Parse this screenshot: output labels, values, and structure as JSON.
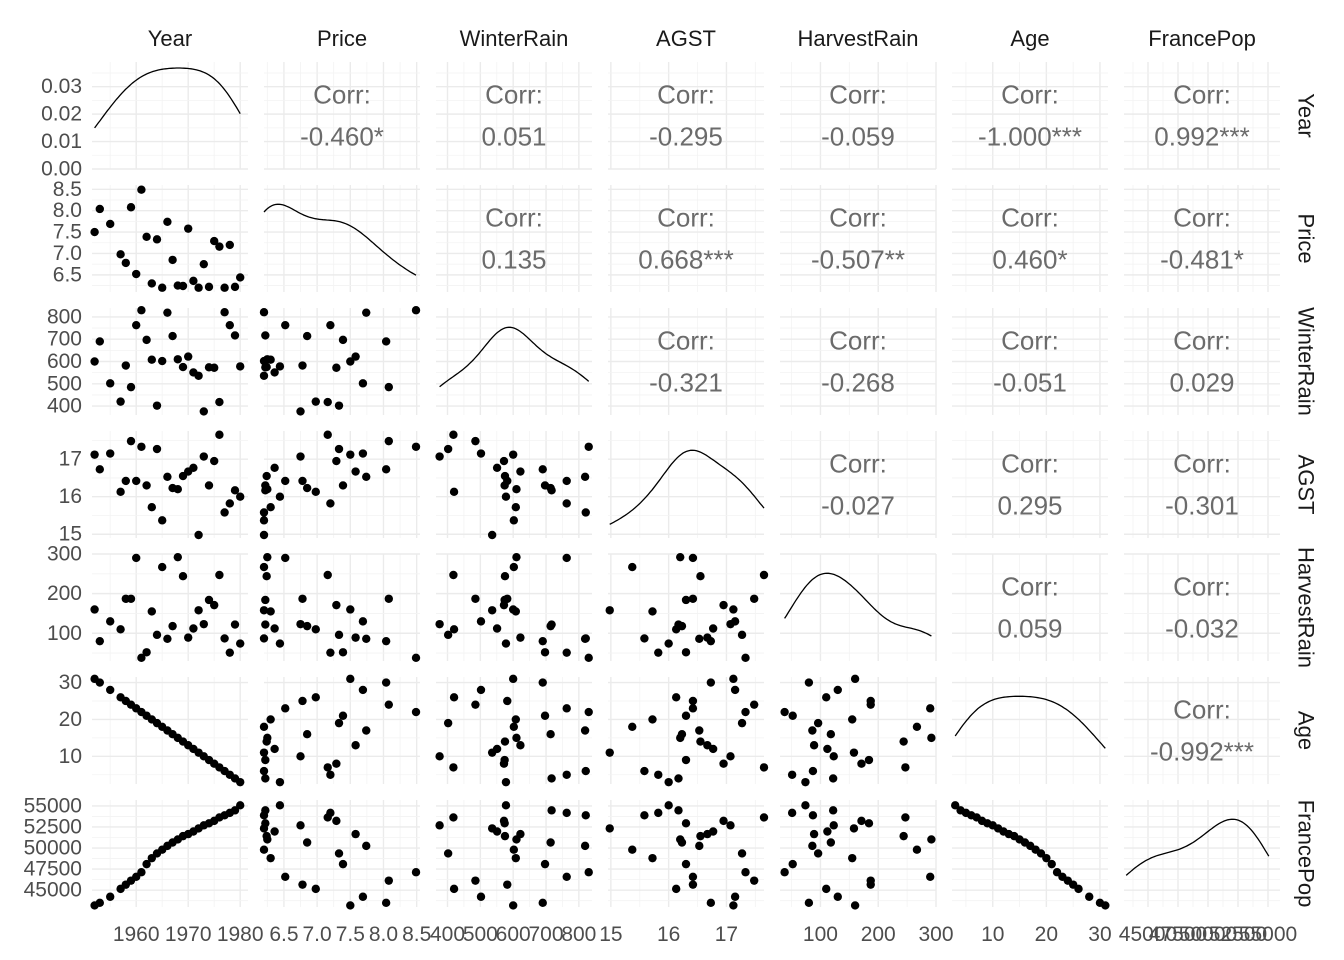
{
  "chart_data": {
    "type": "scatter",
    "subtype": "pairs-plot-matrix",
    "variables": [
      "Year",
      "Price",
      "WinterRain",
      "AGST",
      "HarvestRain",
      "Age",
      "FrancePop"
    ],
    "diagonal": "density",
    "upper": "correlation",
    "lower": "scatter",
    "grid": true,
    "point_color": "#000000",
    "corr_label": "Corr:",
    "correlations": [
      {
        "row": "Year",
        "col": "Price",
        "value": "-0.460*"
      },
      {
        "row": "Year",
        "col": "WinterRain",
        "value": "0.051"
      },
      {
        "row": "Year",
        "col": "AGST",
        "value": "-0.295"
      },
      {
        "row": "Year",
        "col": "HarvestRain",
        "value": "-0.059"
      },
      {
        "row": "Year",
        "col": "Age",
        "value": "-1.000***"
      },
      {
        "row": "Year",
        "col": "FrancePop",
        "value": "0.992***"
      },
      {
        "row": "Price",
        "col": "WinterRain",
        "value": "0.135"
      },
      {
        "row": "Price",
        "col": "AGST",
        "value": "0.668***"
      },
      {
        "row": "Price",
        "col": "HarvestRain",
        "value": "-0.507**"
      },
      {
        "row": "Price",
        "col": "Age",
        "value": "0.460*"
      },
      {
        "row": "Price",
        "col": "FrancePop",
        "value": "-0.481*"
      },
      {
        "row": "WinterRain",
        "col": "AGST",
        "value": "-0.321"
      },
      {
        "row": "WinterRain",
        "col": "HarvestRain",
        "value": "-0.268"
      },
      {
        "row": "WinterRain",
        "col": "Age",
        "value": "-0.051"
      },
      {
        "row": "WinterRain",
        "col": "FrancePop",
        "value": "0.029"
      },
      {
        "row": "AGST",
        "col": "HarvestRain",
        "value": "-0.027"
      },
      {
        "row": "AGST",
        "col": "Age",
        "value": "0.295"
      },
      {
        "row": "AGST",
        "col": "FrancePop",
        "value": "-0.301"
      },
      {
        "row": "HarvestRain",
        "col": "Age",
        "value": "0.059"
      },
      {
        "row": "HarvestRain",
        "col": "FrancePop",
        "value": "-0.032"
      },
      {
        "row": "Age",
        "col": "FrancePop",
        "value": "-0.992***"
      }
    ],
    "x_axes": [
      {
        "var": "Year",
        "range": [
          1951.5,
          1981.5
        ],
        "ticks": [
          1960,
          1970,
          1980
        ],
        "tick_labels": [
          "1960",
          "1970",
          "1980"
        ]
      },
      {
        "var": "Price",
        "range": [
          6.2,
          8.55
        ],
        "ticks": [
          6.5,
          7.0,
          7.5,
          8.0,
          8.5
        ],
        "tick_labels": [
          "6.5",
          "7.0",
          "7.5",
          "8.0",
          "8.5"
        ]
      },
      {
        "var": "WinterRain",
        "range": [
          365,
          840
        ],
        "ticks": [
          400,
          500,
          600,
          700,
          800
        ],
        "tick_labels": [
          "400",
          "500",
          "600",
          "700",
          "800"
        ]
      },
      {
        "var": "AGST",
        "range": [
          14.95,
          17.65
        ],
        "ticks": [
          15,
          16,
          17
        ],
        "tick_labels": [
          "15",
          "16",
          "17"
        ]
      },
      {
        "var": "HarvestRain",
        "range": [
          30,
          300
        ],
        "ticks": [
          100,
          200,
          300
        ],
        "tick_labels": [
          "100",
          "200",
          "300"
        ]
      },
      {
        "var": "Age",
        "range": [
          2.4,
          31.5
        ],
        "ticks": [
          10,
          20,
          30
        ],
        "tick_labels": [
          "10",
          "20",
          "30"
        ]
      },
      {
        "var": "FrancePop",
        "range": [
          43000,
          56000
        ],
        "ticks": [
          45000,
          47500,
          50000,
          52500,
          55000
        ],
        "tick_labels": [
          "45000",
          "47500",
          "50000",
          "52500",
          "55000"
        ]
      }
    ],
    "y_axes": [
      {
        "var": "Year",
        "range": [
          0,
          0.039
        ],
        "ticks": [
          0,
          0.01,
          0.02,
          0.03
        ],
        "tick_labels": [
          "0.00",
          "0.01",
          "0.02",
          "0.03"
        ]
      },
      {
        "var": "Price",
        "range": [
          6.1,
          8.6
        ],
        "ticks": [
          6.5,
          7.0,
          7.5,
          8.0,
          8.5
        ],
        "tick_labels": [
          "6.5",
          "7.0",
          "7.5",
          "8.0",
          "8.5"
        ]
      },
      {
        "var": "WinterRain",
        "range": [
          360,
          840
        ],
        "ticks": [
          400,
          500,
          600,
          700,
          800
        ],
        "tick_labels": [
          "400",
          "500",
          "600",
          "700",
          "800"
        ]
      },
      {
        "var": "AGST",
        "range": [
          14.9,
          17.75
        ],
        "ticks": [
          15,
          16,
          17
        ],
        "tick_labels": [
          "15",
          "16",
          "17"
        ]
      },
      {
        "var": "HarvestRain",
        "range": [
          30,
          300
        ],
        "ticks": [
          100,
          200,
          300
        ],
        "tick_labels": [
          "100",
          "200",
          "300"
        ]
      },
      {
        "var": "Age",
        "range": [
          2.5,
          31.5
        ],
        "ticks": [
          10,
          20,
          30
        ],
        "tick_labels": [
          "10",
          "20",
          "30"
        ]
      },
      {
        "var": "FrancePop",
        "range": [
          43000,
          55700
        ],
        "ticks": [
          45000,
          47500,
          50000,
          52500,
          55000
        ],
        "tick_labels": [
          "45000",
          "47500",
          "50000",
          "52500",
          "55000"
        ]
      }
    ],
    "observations": {
      "Year": [
        1952,
        1953,
        1955,
        1957,
        1958,
        1959,
        1960,
        1961,
        1962,
        1963,
        1964,
        1965,
        1966,
        1967,
        1968,
        1969,
        1970,
        1971,
        1972,
        1973,
        1974,
        1975,
        1976,
        1977,
        1978,
        1979,
        1980
      ],
      "Price": [
        7.5,
        8.04,
        7.69,
        6.98,
        6.78,
        8.08,
        6.52,
        8.49,
        7.39,
        6.3,
        7.33,
        6.2,
        7.74,
        6.85,
        6.25,
        6.24,
        7.58,
        6.36,
        6.2,
        6.75,
        6.22,
        7.29,
        7.16,
        6.2,
        7.2,
        6.22,
        6.44
      ],
      "WinterRain": [
        600,
        690,
        502,
        420,
        582,
        485,
        763,
        830,
        697,
        608,
        402,
        602,
        819,
        714,
        610,
        575,
        622,
        551,
        536,
        376,
        574,
        572,
        418,
        821,
        763,
        717,
        578
      ],
      "AGST": [
        17.12,
        16.73,
        17.15,
        16.13,
        16.42,
        17.48,
        16.42,
        17.33,
        16.3,
        15.72,
        17.27,
        15.37,
        16.53,
        16.23,
        16.2,
        16.55,
        16.67,
        16.77,
        14.98,
        17.07,
        16.3,
        16.95,
        17.65,
        15.58,
        15.82,
        16.17,
        16.0
      ],
      "HarvestRain": [
        160,
        80,
        130,
        110,
        187,
        187,
        290,
        38,
        52,
        155,
        96,
        267,
        86,
        118,
        292,
        244,
        89,
        112,
        158,
        123,
        184,
        171,
        247,
        87,
        51,
        122,
        74
      ],
      "Age": [
        31,
        30,
        28,
        26,
        25,
        24,
        23,
        22,
        21,
        20,
        19,
        18,
        17,
        16,
        15,
        14,
        13,
        12,
        11,
        10,
        9,
        8,
        7,
        6,
        5,
        4,
        3
      ],
      "FrancePop": [
        43184,
        43495,
        44218,
        45152,
        45654,
        46129,
        46584,
        47128,
        48089,
        48799,
        49356,
        49801,
        50255,
        50656,
        51018,
        51411,
        51652,
        51962,
        52329,
        52690,
        52936,
        53222,
        53627,
        53883,
        54173,
        54472,
        55066
      ]
    }
  }
}
